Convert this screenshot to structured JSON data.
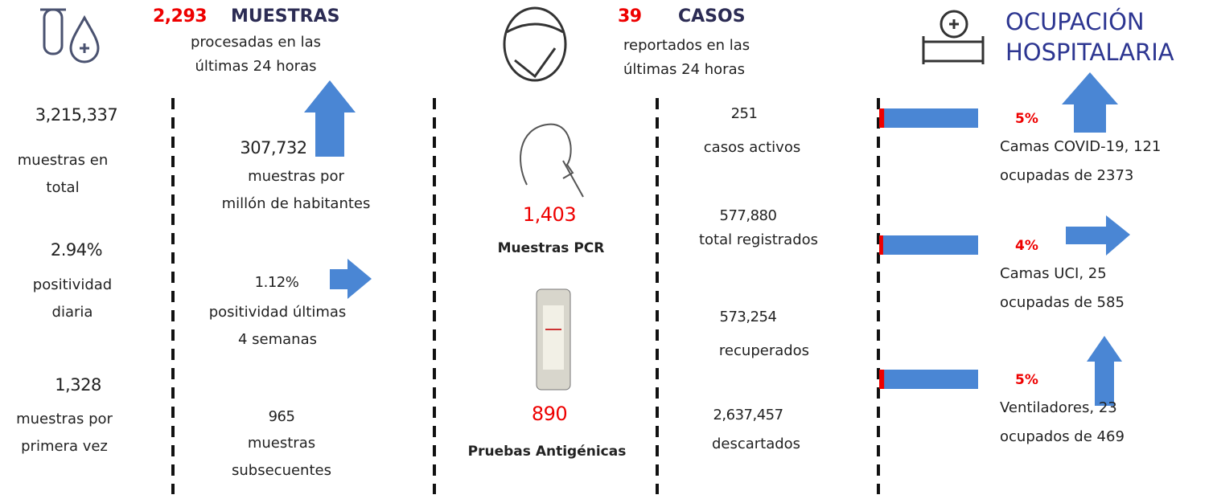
{
  "muestras": {
    "count": "2,293",
    "title": "MUESTRAS",
    "subtitle": "procesadas en las\núltimas 24 horas",
    "total": {
      "value": "3,215,337",
      "label": "muestras en\ntotal"
    },
    "por_millon": {
      "value": "307,732",
      "label": "muestras por\nmillón de habitantes"
    },
    "positividad_diaria": {
      "value": "2.94%",
      "label": "positividad\ndiaria"
    },
    "positividad_semanas": {
      "value": "1.12%",
      "label": "positividad últimas\n4 semanas"
    },
    "primera_vez": {
      "value": "1,328",
      "label": "muestras por\nprimera vez"
    },
    "subsecuentes": {
      "value": "965",
      "label": "muestras\nsubsecuentes"
    }
  },
  "casos": {
    "count": "39",
    "title": "CASOS",
    "subtitle": "reportados en las\núltimas 24 horas",
    "pcr": {
      "value": "1,403",
      "label": "Muestras PCR"
    },
    "antigenicas": {
      "value": "890",
      "label": "Pruebas Antigénicas"
    },
    "activos": {
      "value": "251",
      "label": "casos activos"
    },
    "registrados": {
      "value": "577,880",
      "label": "total registrados"
    },
    "recuperados": {
      "value": "573,254",
      "label": "recuperados"
    },
    "descartados": {
      "value": "2,637,457",
      "label": "descartados"
    }
  },
  "hospital": {
    "title": "OCUPACIÓN\nHOSPITALARIA",
    "rows": [
      {
        "value": 5,
        "value_label": "5%",
        "label": "Camas COVID-19,  121\nocupadas de 2373"
      },
      {
        "value": 4,
        "value_label": "4%",
        "label": "Camas UCI,  25\nocupadas de 585"
      },
      {
        "value": 5,
        "value_label": "5%",
        "label": "Ventiladores, 23\nocupados de 469"
      }
    ]
  }
}
